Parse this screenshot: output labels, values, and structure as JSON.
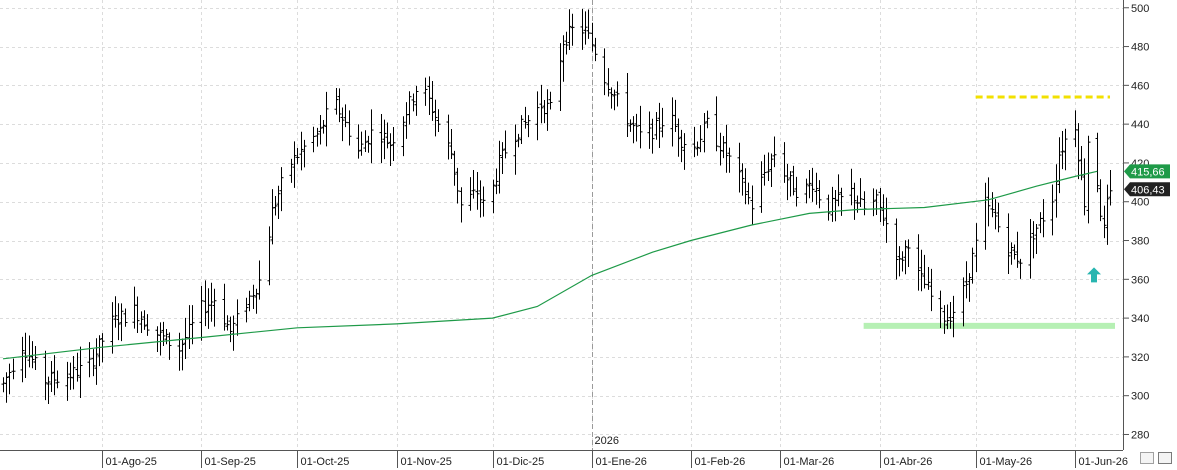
{
  "chart_data": {
    "type": "ohlc",
    "y_axis": {
      "side": "right",
      "min": 272,
      "max": 504,
      "ticks": [
        280,
        300,
        320,
        340,
        360,
        380,
        400,
        420,
        440,
        460,
        480,
        500
      ]
    },
    "x_axis": {
      "start": "2025-07-01",
      "end": "2026-06-12",
      "ticks": [
        {
          "date": "2025-08-01",
          "label": "01-Ago-25"
        },
        {
          "date": "2025-09-01",
          "label": "01-Sep-25"
        },
        {
          "date": "2025-10-01",
          "label": "01-Oct-25"
        },
        {
          "date": "2025-11-01",
          "label": "01-Nov-25"
        },
        {
          "date": "2025-12-01",
          "label": "01-Dic-25"
        },
        {
          "date": "2026-01-01",
          "label": "01-Ene-26"
        },
        {
          "date": "2026-02-01",
          "label": "01-Feb-26"
        },
        {
          "date": "2026-03-01",
          "label": "01-Mar-26"
        },
        {
          "date": "2026-04-01",
          "label": "01-Abr-26"
        },
        {
          "date": "2026-05-01",
          "label": "01-May-26"
        },
        {
          "date": "2026-06-01",
          "label": "01-Jun-26"
        }
      ],
      "year_marker": {
        "date": "2026-01-01",
        "label": "2026"
      }
    },
    "grid": true,
    "price_series_color": "#000000",
    "moving_average": {
      "color": "#1e9a48",
      "points": [
        [
          "2025-07-01",
          319
        ],
        [
          "2025-08-01",
          325
        ],
        [
          "2025-09-01",
          330
        ],
        [
          "2025-10-01",
          335
        ],
        [
          "2025-11-01",
          337
        ],
        [
          "2025-12-01",
          340
        ],
        [
          "2025-12-15",
          346
        ],
        [
          "2026-01-01",
          362
        ],
        [
          "2026-01-20",
          374
        ],
        [
          "2026-02-01",
          380
        ],
        [
          "2026-02-20",
          388
        ],
        [
          "2026-03-10",
          394
        ],
        [
          "2026-03-25",
          396
        ],
        [
          "2026-04-15",
          397
        ],
        [
          "2026-05-05",
          401
        ],
        [
          "2026-05-20",
          408
        ],
        [
          "2026-06-01",
          413
        ],
        [
          "2026-06-08",
          415.7
        ]
      ]
    },
    "price_path": [
      [
        "2025-07-01",
        306
      ],
      [
        "2025-07-07",
        326
      ],
      [
        "2025-07-14",
        308
      ],
      [
        "2025-07-21",
        310
      ],
      [
        "2025-07-28",
        316
      ],
      [
        "2025-08-04",
        338
      ],
      [
        "2025-08-11",
        344
      ],
      [
        "2025-08-18",
        332
      ],
      [
        "2025-08-25",
        324
      ],
      [
        "2025-09-01",
        345
      ],
      [
        "2025-09-05",
        350
      ],
      [
        "2025-09-10",
        333
      ],
      [
        "2025-09-15",
        348
      ],
      [
        "2025-09-20",
        362
      ],
      [
        "2025-09-23",
        395
      ],
      [
        "2025-09-28",
        418
      ],
      [
        "2025-10-03",
        428
      ],
      [
        "2025-10-08",
        436
      ],
      [
        "2025-10-12",
        453
      ],
      [
        "2025-10-16",
        440
      ],
      [
        "2025-10-20",
        426
      ],
      [
        "2025-10-25",
        438
      ],
      [
        "2025-10-30",
        430
      ],
      [
        "2025-11-03",
        443
      ],
      [
        "2025-11-08",
        462
      ],
      [
        "2025-11-11",
        452
      ],
      [
        "2025-11-14",
        440
      ],
      [
        "2025-11-18",
        425
      ],
      [
        "2025-11-21",
        398
      ],
      [
        "2025-11-26",
        405
      ],
      [
        "2025-11-29",
        395
      ],
      [
        "2025-12-03",
        420
      ],
      [
        "2025-12-08",
        435
      ],
      [
        "2025-12-12",
        442
      ],
      [
        "2025-12-16",
        450
      ],
      [
        "2025-12-19",
        448
      ],
      [
        "2025-12-23",
        483
      ],
      [
        "2025-12-27",
        490
      ],
      [
        "2025-12-30",
        488
      ],
      [
        "2026-01-02",
        478
      ],
      [
        "2026-01-05",
        464
      ],
      [
        "2026-01-09",
        452
      ],
      [
        "2026-01-13",
        440
      ],
      [
        "2026-01-17",
        432
      ],
      [
        "2026-01-21",
        438
      ],
      [
        "2026-01-25",
        445
      ],
      [
        "2026-01-29",
        432
      ],
      [
        "2026-02-02",
        428
      ],
      [
        "2026-02-06",
        440
      ],
      [
        "2026-02-09",
        432
      ],
      [
        "2026-02-13",
        422
      ],
      [
        "2026-02-16",
        412
      ],
      [
        "2026-02-20",
        398
      ],
      [
        "2026-02-24",
        415
      ],
      [
        "2026-02-27",
        425
      ],
      [
        "2026-03-03",
        412
      ],
      [
        "2026-03-07",
        404
      ],
      [
        "2026-03-11",
        410
      ],
      [
        "2026-03-15",
        396
      ],
      [
        "2026-03-19",
        400
      ],
      [
        "2026-03-23",
        405
      ],
      [
        "2026-03-27",
        396
      ],
      [
        "2026-03-31",
        400
      ],
      [
        "2026-04-04",
        385
      ],
      [
        "2026-04-07",
        368
      ],
      [
        "2026-04-10",
        380
      ],
      [
        "2026-04-13",
        362
      ],
      [
        "2026-04-16",
        355
      ],
      [
        "2026-04-19",
        342
      ],
      [
        "2026-04-22",
        340
      ],
      [
        "2026-04-25",
        346
      ],
      [
        "2026-04-28",
        358
      ],
      [
        "2026-05-01",
        378
      ],
      [
        "2026-05-04",
        398
      ],
      [
        "2026-05-07",
        392
      ],
      [
        "2026-05-10",
        378
      ],
      [
        "2026-05-13",
        372
      ],
      [
        "2026-05-16",
        370
      ],
      [
        "2026-05-19",
        384
      ],
      [
        "2026-05-22",
        392
      ],
      [
        "2026-05-25",
        402
      ],
      [
        "2026-05-27",
        425
      ],
      [
        "2026-05-29",
        432
      ],
      [
        "2026-05-31",
        448
      ],
      [
        "2026-06-01",
        440
      ],
      [
        "2026-06-02",
        425
      ],
      [
        "2026-06-03",
        412
      ],
      [
        "2026-06-04",
        400
      ],
      [
        "2026-06-05",
        432
      ],
      [
        "2026-06-06",
        440
      ],
      [
        "2026-06-07",
        422
      ],
      [
        "2026-06-08",
        410
      ],
      [
        "2026-06-09",
        395
      ],
      [
        "2026-06-10",
        385
      ],
      [
        "2026-06-11",
        398
      ],
      [
        "2026-06-12",
        403
      ]
    ],
    "resistance_line": {
      "value": 454,
      "from": "2026-05-01",
      "to": "2026-06-12",
      "color": "#f2e000",
      "style": "dashed"
    },
    "support_line": {
      "value": 336,
      "from": "2026-03-27",
      "to": "2026-06-12",
      "color": "#b6f0b4"
    },
    "price_labels": [
      {
        "value": 415.66,
        "text": "415,66",
        "color": "#1e9a48"
      },
      {
        "value": 406.43,
        "text": "406,43",
        "color": "#222222"
      }
    ],
    "arrow": {
      "date": "2026-06-07",
      "value": 362,
      "direction": "up",
      "color": "#27b5b0"
    }
  }
}
